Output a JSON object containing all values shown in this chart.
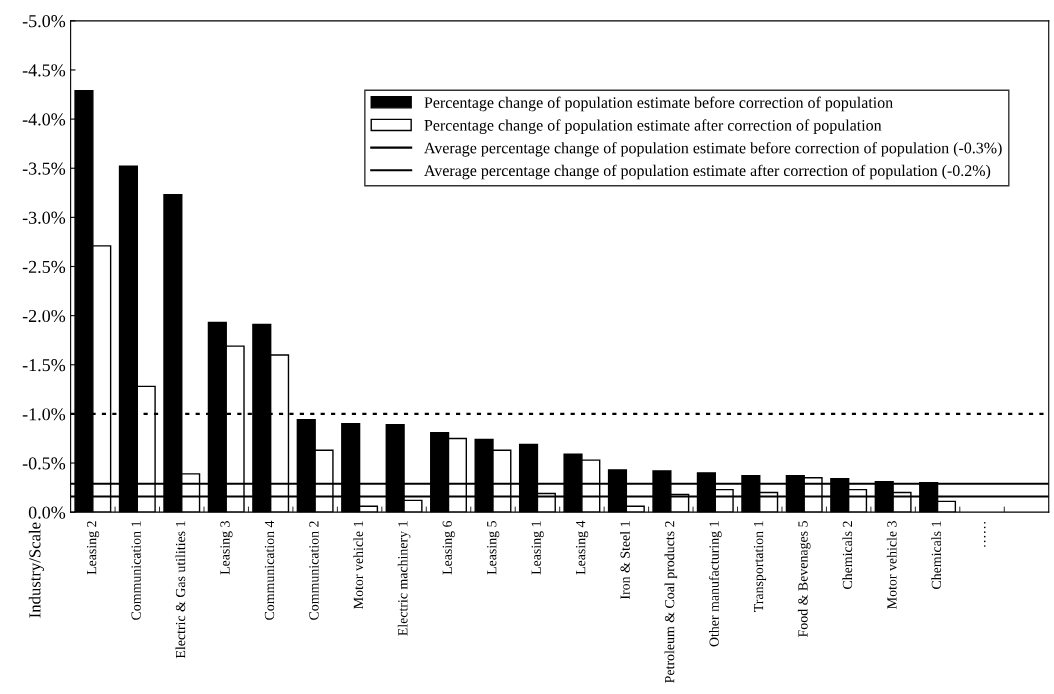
{
  "chart_data": {
    "type": "bar",
    "annotations": [
      "Industry/Scale"
    ],
    "categories": [
      "Leasing 2",
      "Communication 1",
      "Electric & Gas utilities 1",
      "Leasing 3",
      "Communication 4",
      "Communication 2",
      "Motor vehicle 1",
      "Electric machinery 1",
      "Leasing 6",
      "Leasing 5",
      "Leasing 1",
      "Leasing 4",
      "Iron & Steel 1",
      "Petroleum & Coal products 2",
      "Other manufacturing 1",
      "Transportation 1",
      "Food & Bevenages 5",
      "Chemicals 2",
      "Motor vehicle 3",
      "Chemicals 1",
      "……",
      null
    ],
    "series": [
      {
        "name": "Percentage change of population estimate before correction of population",
        "color": "#000000",
        "values": [
          -4.29,
          -3.52,
          -3.23,
          -1.93,
          -1.91,
          -0.94,
          -0.9,
          -0.89,
          -0.81,
          -0.74,
          -0.69,
          -0.59,
          -0.43,
          -0.42,
          -0.4,
          -0.37,
          -0.37,
          -0.34,
          -0.31,
          -0.3,
          null,
          null
        ]
      },
      {
        "name": "Percentage change of population estimate after correction of population",
        "color": "#ffffff",
        "values": [
          -2.71,
          -1.28,
          -0.39,
          -1.69,
          -1.6,
          -0.63,
          -0.06,
          -0.12,
          -0.75,
          -0.63,
          -0.19,
          -0.53,
          -0.06,
          -0.18,
          -0.23,
          -0.2,
          -0.35,
          -0.23,
          -0.2,
          -0.11,
          null,
          null
        ]
      }
    ],
    "ylim": [
      0,
      -5.0
    ],
    "yticks": [
      {
        "value": 0,
        "label": "0.0%"
      },
      {
        "value": -0.5,
        "label": "-0.5%"
      },
      {
        "value": -1.0,
        "label": "-1.0%"
      },
      {
        "value": -1.5,
        "label": "-1.5%"
      },
      {
        "value": -2.0,
        "label": "-2.0%"
      },
      {
        "value": -2.5,
        "label": "-2.5%"
      },
      {
        "value": -3.0,
        "label": "-3.0%"
      },
      {
        "value": -3.5,
        "label": "-3.5%"
      },
      {
        "value": -4.0,
        "label": "-4.0%"
      },
      {
        "value": -4.5,
        "label": "-4.5%"
      },
      {
        "value": -5.0,
        "label": "-5.0%"
      }
    ],
    "ref_lines": [
      {
        "axis": "y",
        "value": -1.0,
        "color": "#000000",
        "line_style": "dotted"
      },
      {
        "axis": "y",
        "value": -0.29,
        "label": "Average percentage change of population estimate before correction of population (-0.3%)",
        "color": "#000000",
        "line_style": "solid"
      },
      {
        "axis": "y",
        "value": -0.16,
        "label": "Average percentage change of population estimate after correction of population (-0.2%)",
        "color": "#000000",
        "line_style": "solid"
      }
    ],
    "grid": false,
    "legend": "top right"
  }
}
